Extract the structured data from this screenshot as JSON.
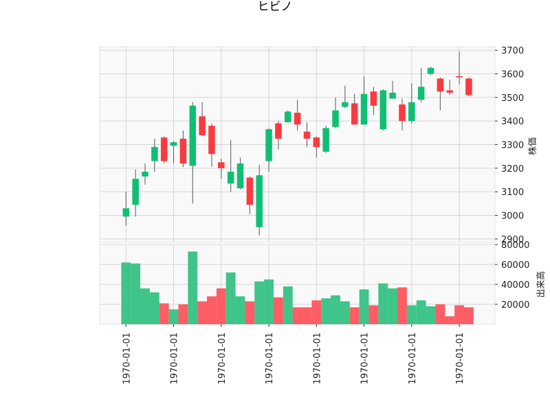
{
  "chart_data": [
    {
      "type": "candlestick",
      "title": "ヒビノ",
      "ylabel": "株価",
      "ylim": [
        2885,
        3715
      ],
      "yticks": [
        2900,
        3000,
        3100,
        3200,
        3300,
        3400,
        3500,
        3600,
        3700
      ],
      "x_tick_labels": [
        "1970-01-01",
        "1970-01-01",
        "1970-01-01",
        "1970-01-01",
        "1970-01-01",
        "1970-01-01",
        "1970-01-01",
        "1970-01-01"
      ],
      "up_color": "#0fbf73",
      "down_color": "#fb3a40",
      "series": [
        {
          "o": 2995,
          "h": 3100,
          "l": 2955,
          "c": 3030
        },
        {
          "o": 3045,
          "h": 3195,
          "l": 2995,
          "c": 3155
        },
        {
          "o": 3165,
          "h": 3220,
          "l": 3130,
          "c": 3185
        },
        {
          "o": 3230,
          "h": 3325,
          "l": 3185,
          "c": 3290
        },
        {
          "o": 3330,
          "h": 3335,
          "l": 3220,
          "c": 3230
        },
        {
          "o": 3295,
          "h": 3315,
          "l": 3220,
          "c": 3310
        },
        {
          "o": 3325,
          "h": 3360,
          "l": 3205,
          "c": 3220
        },
        {
          "o": 3210,
          "h": 3480,
          "l": 3050,
          "c": 3465
        },
        {
          "o": 3420,
          "h": 3480,
          "l": 3335,
          "c": 3340
        },
        {
          "o": 3380,
          "h": 3390,
          "l": 3205,
          "c": 3260
        },
        {
          "o": 3225,
          "h": 3240,
          "l": 3155,
          "c": 3200
        },
        {
          "o": 3135,
          "h": 3320,
          "l": 3100,
          "c": 3185
        },
        {
          "o": 3115,
          "h": 3245,
          "l": 3110,
          "c": 3220
        },
        {
          "o": 3160,
          "h": 3165,
          "l": 3005,
          "c": 3045
        },
        {
          "o": 2950,
          "h": 3215,
          "l": 2915,
          "c": 3170
        },
        {
          "o": 3230,
          "h": 3370,
          "l": 3185,
          "c": 3365
        },
        {
          "o": 3390,
          "h": 3400,
          "l": 3280,
          "c": 3325
        },
        {
          "o": 3395,
          "h": 3445,
          "l": 3395,
          "c": 3440
        },
        {
          "o": 3435,
          "h": 3490,
          "l": 3360,
          "c": 3385
        },
        {
          "o": 3355,
          "h": 3395,
          "l": 3290,
          "c": 3325
        },
        {
          "o": 3330,
          "h": 3335,
          "l": 3245,
          "c": 3290
        },
        {
          "o": 3270,
          "h": 3380,
          "l": 3265,
          "c": 3370
        },
        {
          "o": 3375,
          "h": 3500,
          "l": 3370,
          "c": 3445
        },
        {
          "o": 3460,
          "h": 3550,
          "l": 3455,
          "c": 3480
        },
        {
          "o": 3475,
          "h": 3515,
          "l": 3385,
          "c": 3385
        },
        {
          "o": 3385,
          "h": 3590,
          "l": 3385,
          "c": 3515
        },
        {
          "o": 3525,
          "h": 3545,
          "l": 3425,
          "c": 3465
        },
        {
          "o": 3365,
          "h": 3535,
          "l": 3360,
          "c": 3530
        },
        {
          "o": 3495,
          "h": 3570,
          "l": 3495,
          "c": 3520
        },
        {
          "o": 3470,
          "h": 3495,
          "l": 3360,
          "c": 3400
        },
        {
          "o": 3400,
          "h": 3560,
          "l": 3390,
          "c": 3480
        },
        {
          "o": 3490,
          "h": 3625,
          "l": 3480,
          "c": 3545
        },
        {
          "o": 3600,
          "h": 3630,
          "l": 3595,
          "c": 3625
        },
        {
          "o": 3580,
          "h": 3585,
          "l": 3445,
          "c": 3525
        },
        {
          "o": 3530,
          "h": 3575,
          "l": 3510,
          "c": 3520
        },
        {
          "o": 3590,
          "h": 3695,
          "l": 3555,
          "c": 3585
        },
        {
          "o": 3580,
          "h": 3585,
          "l": 3505,
          "c": 3510
        }
      ]
    },
    {
      "type": "bar",
      "ylabel": "出来高",
      "ylim": [
        0,
        80000
      ],
      "yticks": [
        20000,
        40000,
        60000,
        80000
      ],
      "values": [
        62000,
        61000,
        36000,
        32000,
        21000,
        15000,
        20000,
        73000,
        23000,
        28000,
        36000,
        52000,
        28000,
        23000,
        43000,
        45000,
        27000,
        38000,
        17000,
        17000,
        24000,
        26000,
        29000,
        23000,
        17000,
        35000,
        19000,
        41000,
        36000,
        37000,
        19000,
        24000,
        18000,
        20000,
        8000,
        19000,
        17000
      ],
      "up_color": "#3fc48a",
      "down_color": "#fd5e65"
    }
  ]
}
